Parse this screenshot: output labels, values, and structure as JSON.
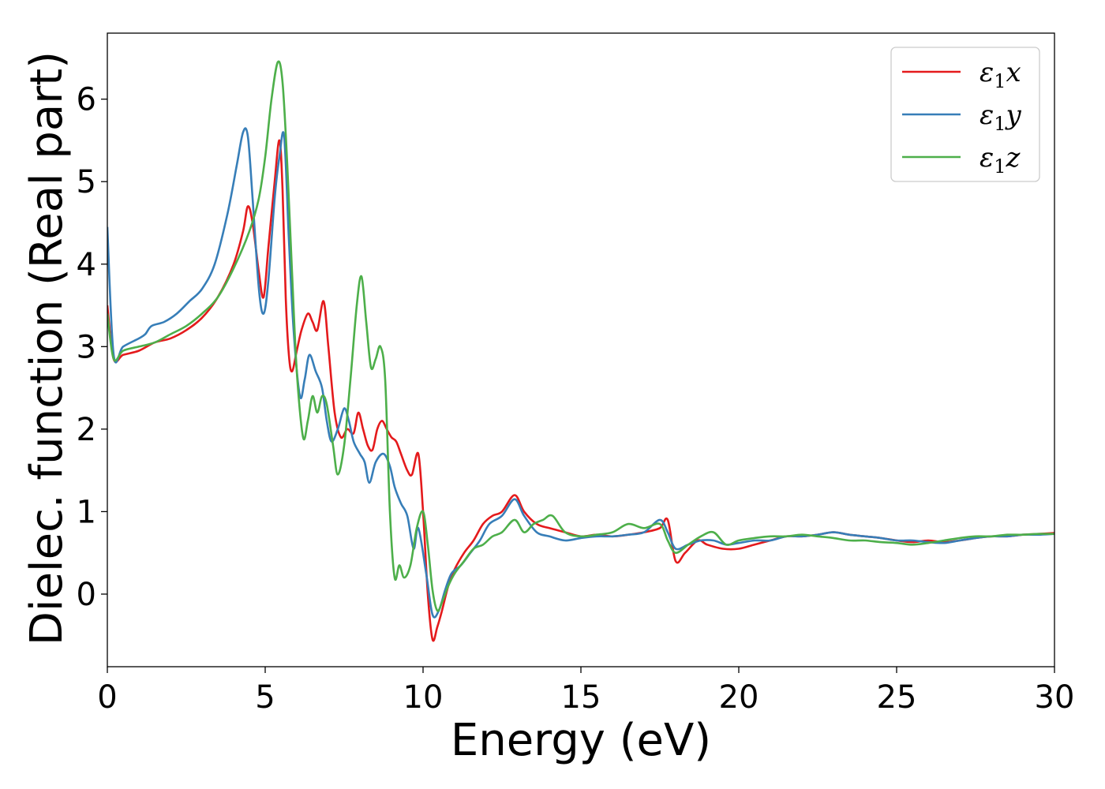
{
  "chart_data": {
    "type": "line",
    "title": "",
    "xlabel": "Energy (eV)",
    "ylabel": "Dielec. function (Real part)",
    "xlim": [
      0,
      30
    ],
    "ylim": [
      -0.88,
      6.8
    ],
    "xticks": [
      "0",
      "5",
      "10",
      "15",
      "20",
      "25",
      "30"
    ],
    "yticks": [
      "0",
      "1",
      "2",
      "3",
      "4",
      "5",
      "6"
    ],
    "grid": false,
    "legend_position": "top-right",
    "series": [
      {
        "name": "ε1x",
        "legend": {
          "base": "ε",
          "sub": "1",
          "axis": "x"
        },
        "color": "#e41a1c",
        "x": [
          0,
          0.2,
          0.5,
          1.0,
          1.5,
          2.0,
          2.5,
          3.0,
          3.5,
          4.0,
          4.3,
          4.45,
          4.6,
          4.8,
          4.95,
          5.1,
          5.3,
          5.45,
          5.55,
          5.65,
          5.75,
          5.85,
          6.0,
          6.15,
          6.35,
          6.5,
          6.65,
          6.85,
          7.0,
          7.2,
          7.4,
          7.6,
          7.8,
          7.95,
          8.1,
          8.25,
          8.4,
          8.55,
          8.7,
          8.85,
          9.0,
          9.15,
          9.3,
          9.5,
          9.65,
          9.85,
          10.0,
          10.15,
          10.3,
          10.45,
          10.6,
          10.8,
          11.0,
          11.3,
          11.6,
          11.9,
          12.2,
          12.5,
          12.9,
          13.2,
          13.6,
          14.0,
          14.5,
          15.0,
          15.5,
          16.0,
          16.5,
          17.0,
          17.5,
          17.75,
          18.0,
          18.3,
          18.7,
          19.0,
          19.5,
          20.0,
          20.5,
          21.0,
          21.5,
          22.0,
          22.5,
          23.0,
          23.5,
          24.0,
          24.5,
          25.0,
          25.5,
          26.0,
          26.5,
          27.0,
          27.5,
          28.0,
          28.5,
          29.0,
          29.5,
          30.0
        ],
        "y": [
          3.5,
          2.85,
          2.9,
          2.95,
          3.05,
          3.1,
          3.2,
          3.35,
          3.6,
          4.0,
          4.4,
          4.7,
          4.5,
          3.9,
          3.6,
          4.2,
          5.0,
          5.5,
          4.9,
          3.6,
          2.9,
          2.7,
          2.95,
          3.2,
          3.4,
          3.3,
          3.2,
          3.55,
          3.0,
          2.2,
          1.9,
          2.0,
          1.95,
          2.2,
          2.0,
          1.8,
          1.75,
          2.0,
          2.1,
          2.0,
          1.9,
          1.85,
          1.7,
          1.5,
          1.45,
          1.7,
          1.0,
          0.0,
          -0.55,
          -0.4,
          -0.2,
          0.1,
          0.3,
          0.5,
          0.65,
          0.85,
          0.95,
          1.0,
          1.2,
          1.0,
          0.85,
          0.8,
          0.75,
          0.7,
          0.72,
          0.7,
          0.72,
          0.75,
          0.8,
          0.9,
          0.4,
          0.5,
          0.65,
          0.6,
          0.55,
          0.55,
          0.6,
          0.65,
          0.7,
          0.7,
          0.72,
          0.75,
          0.72,
          0.7,
          0.68,
          0.65,
          0.63,
          0.65,
          0.63,
          0.65,
          0.68,
          0.7,
          0.7,
          0.72,
          0.73,
          0.74
        ]
      },
      {
        "name": "ε1y",
        "legend": {
          "base": "ε",
          "sub": "1",
          "axis": "y"
        },
        "color": "#377eb8",
        "x": [
          0,
          0.2,
          0.5,
          1.0,
          1.2,
          1.4,
          1.8,
          2.2,
          2.6,
          3.0,
          3.4,
          3.8,
          4.1,
          4.3,
          4.45,
          4.6,
          4.8,
          4.95,
          5.1,
          5.3,
          5.45,
          5.6,
          5.75,
          5.9,
          6.1,
          6.25,
          6.4,
          6.6,
          6.8,
          6.95,
          7.1,
          7.3,
          7.5,
          7.65,
          7.8,
          8.0,
          8.15,
          8.3,
          8.5,
          8.75,
          8.95,
          9.1,
          9.3,
          9.5,
          9.7,
          9.85,
          10.1,
          10.3,
          10.5,
          10.7,
          10.9,
          11.2,
          11.5,
          11.8,
          12.1,
          12.5,
          12.9,
          13.2,
          13.6,
          14.0,
          14.5,
          15.0,
          15.5,
          16.0,
          16.5,
          17.0,
          17.5,
          17.75,
          18.0,
          18.4,
          18.8,
          19.2,
          19.6,
          20.0,
          20.5,
          21.0,
          21.5,
          22.0,
          22.5,
          23.0,
          23.5,
          24.0,
          24.5,
          25.0,
          25.5,
          26.0,
          26.5,
          27.0,
          27.5,
          28.0,
          28.5,
          29.0,
          29.5,
          30.0
        ],
        "y": [
          4.45,
          2.9,
          3.0,
          3.1,
          3.15,
          3.25,
          3.3,
          3.4,
          3.55,
          3.7,
          4.0,
          4.6,
          5.2,
          5.6,
          5.55,
          4.8,
          3.7,
          3.4,
          3.8,
          4.8,
          5.3,
          5.55,
          4.3,
          3.2,
          2.4,
          2.6,
          2.9,
          2.7,
          2.5,
          2.1,
          1.85,
          2.0,
          2.25,
          2.1,
          1.85,
          1.7,
          1.6,
          1.35,
          1.6,
          1.7,
          1.55,
          1.3,
          1.1,
          0.95,
          0.55,
          0.8,
          0.25,
          -0.25,
          -0.2,
          0.05,
          0.25,
          0.35,
          0.5,
          0.65,
          0.85,
          0.95,
          1.15,
          0.95,
          0.75,
          0.7,
          0.65,
          0.68,
          0.7,
          0.7,
          0.72,
          0.75,
          0.9,
          0.75,
          0.55,
          0.6,
          0.65,
          0.65,
          0.6,
          0.62,
          0.65,
          0.65,
          0.7,
          0.7,
          0.72,
          0.75,
          0.72,
          0.7,
          0.68,
          0.65,
          0.65,
          0.63,
          0.62,
          0.65,
          0.68,
          0.7,
          0.7,
          0.72,
          0.72,
          0.73
        ]
      },
      {
        "name": "ε1z",
        "legend": {
          "base": "ε",
          "sub": "1",
          "axis": "z"
        },
        "color": "#4daf4a",
        "x": [
          0,
          0.2,
          0.5,
          1.0,
          1.5,
          2.0,
          2.5,
          3.0,
          3.5,
          4.0,
          4.5,
          4.8,
          5.0,
          5.2,
          5.4,
          5.55,
          5.7,
          5.85,
          6.0,
          6.2,
          6.35,
          6.5,
          6.65,
          6.8,
          6.95,
          7.15,
          7.3,
          7.5,
          7.7,
          7.9,
          8.05,
          8.2,
          8.35,
          8.5,
          8.65,
          8.8,
          8.95,
          9.1,
          9.25,
          9.4,
          9.6,
          9.8,
          10.0,
          10.15,
          10.3,
          10.45,
          10.6,
          10.8,
          11.0,
          11.3,
          11.6,
          11.9,
          12.2,
          12.5,
          12.9,
          13.2,
          13.5,
          13.8,
          14.1,
          14.5,
          15.0,
          15.5,
          16.0,
          16.5,
          17.0,
          17.5,
          17.75,
          18.0,
          18.4,
          18.8,
          19.2,
          19.6,
          20.0,
          20.5,
          21.0,
          21.5,
          22.0,
          22.5,
          23.0,
          23.5,
          24.0,
          24.5,
          25.0,
          25.5,
          26.0,
          26.5,
          27.0,
          27.5,
          28.0,
          28.5,
          29.0,
          29.5,
          30.0
        ],
        "y": [
          3.4,
          2.85,
          2.95,
          3.0,
          3.05,
          3.15,
          3.25,
          3.4,
          3.6,
          3.95,
          4.4,
          4.8,
          5.3,
          6.0,
          6.45,
          6.2,
          5.2,
          3.9,
          2.7,
          1.9,
          2.1,
          2.4,
          2.2,
          2.4,
          2.3,
          1.8,
          1.45,
          1.8,
          2.6,
          3.5,
          3.85,
          3.3,
          2.75,
          2.85,
          3.0,
          2.6,
          1.0,
          0.2,
          0.35,
          0.2,
          0.35,
          0.8,
          1.0,
          0.6,
          0.05,
          -0.2,
          -0.1,
          0.1,
          0.25,
          0.4,
          0.55,
          0.6,
          0.7,
          0.75,
          0.9,
          0.75,
          0.85,
          0.9,
          0.95,
          0.75,
          0.7,
          0.72,
          0.75,
          0.85,
          0.8,
          0.85,
          0.65,
          0.5,
          0.6,
          0.7,
          0.75,
          0.6,
          0.65,
          0.68,
          0.7,
          0.7,
          0.72,
          0.7,
          0.68,
          0.65,
          0.65,
          0.63,
          0.62,
          0.6,
          0.62,
          0.65,
          0.68,
          0.7,
          0.7,
          0.72,
          0.72,
          0.73,
          0.73
        ]
      }
    ]
  }
}
